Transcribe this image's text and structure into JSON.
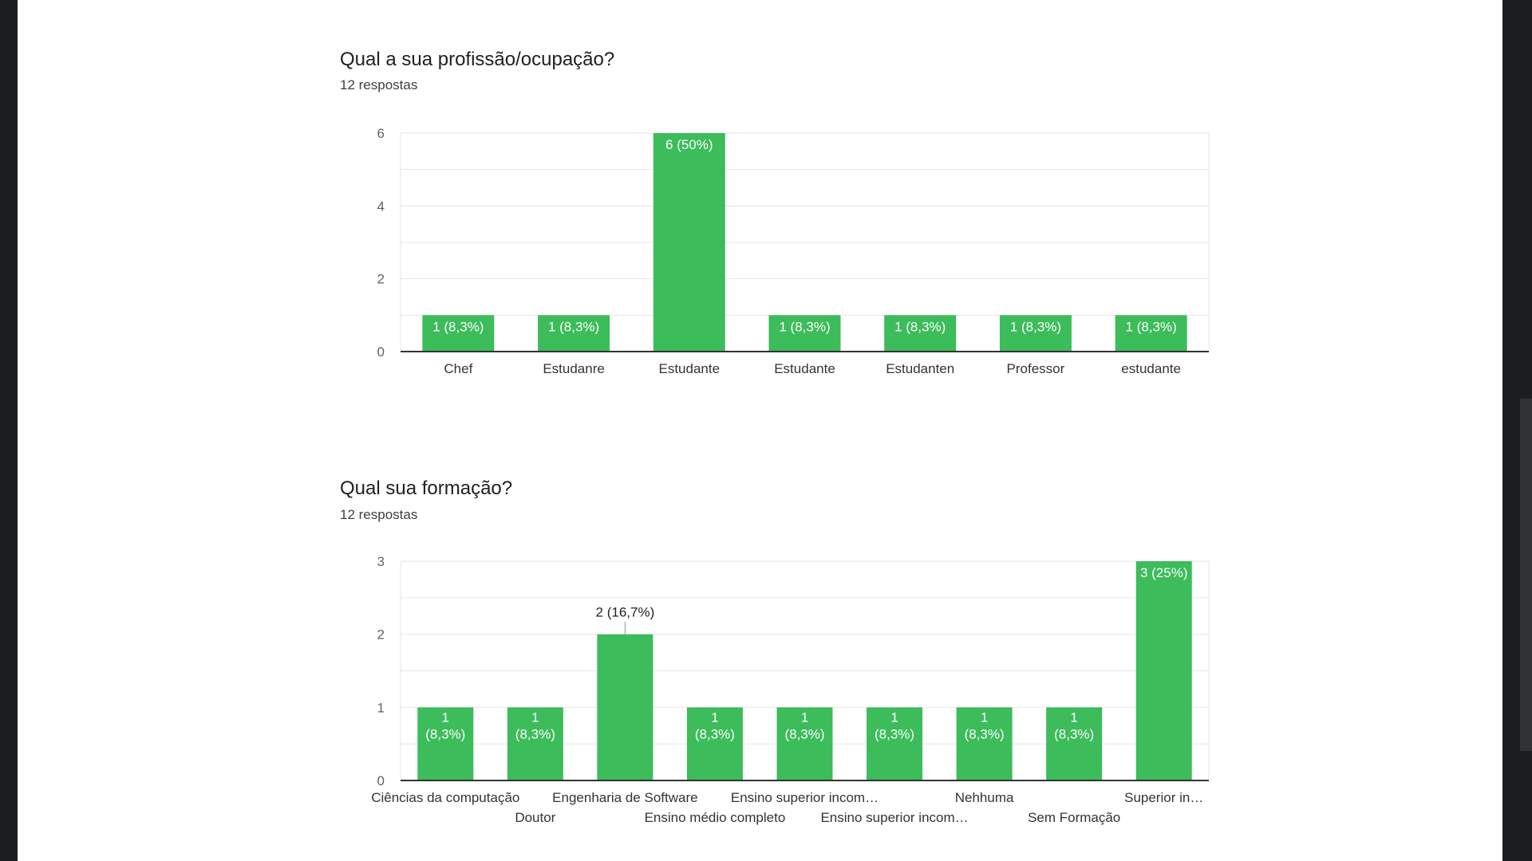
{
  "colors": {
    "bar": "#3cbc5a",
    "grid": "#e6e6e6",
    "axis": "#333333",
    "tick": "#5f6368"
  },
  "questions": [
    {
      "title": "Qual a sua profissão/ocupação?",
      "responses": "12 respostas"
    },
    {
      "title": "Qual sua formação?",
      "responses": "12 respostas"
    }
  ],
  "chart_data": [
    {
      "type": "bar",
      "title": "Qual a sua profissão/ocupação?",
      "subtitle": "12 respostas",
      "categories": [
        "Chef",
        "Estudanre",
        "Estudante",
        "Estudante",
        "Estudanten",
        "Professor",
        "estudante"
      ],
      "values": [
        1,
        1,
        6,
        1,
        1,
        1,
        1
      ],
      "data_labels": [
        "1 (8,3%)",
        "1 (8,3%)",
        "6 (50%)",
        "1 (8,3%)",
        "1 (8,3%)",
        "1 (8,3%)",
        "1 (8,3%)"
      ],
      "ylim": [
        0,
        6
      ],
      "yticks": [
        0,
        2,
        4,
        6
      ],
      "grid": true,
      "legend": "none"
    },
    {
      "type": "bar",
      "title": "Qual sua formação?",
      "subtitle": "12 respostas",
      "categories": [
        "Ciências da computação",
        "Doutor",
        "Engenharia de Software",
        "Ensino médio completo",
        "Ensino superior incom…",
        "Ensino superior incom…",
        "Nehhuma",
        "Sem Formação",
        "Superior in…"
      ],
      "values": [
        1,
        1,
        2,
        1,
        1,
        1,
        1,
        1,
        3
      ],
      "data_labels": [
        "1 (8,3%)",
        "1 (8,3%)",
        "2 (16,7%)",
        "1 (8,3%)",
        "1 (8,3%)",
        "1 (8,3%)",
        "1 (8,3%)",
        "1 (8,3%)",
        "3 (25%)"
      ],
      "ylim": [
        0,
        3
      ],
      "yticks": [
        0,
        1,
        2,
        3
      ],
      "grid": true,
      "legend": "none"
    }
  ]
}
